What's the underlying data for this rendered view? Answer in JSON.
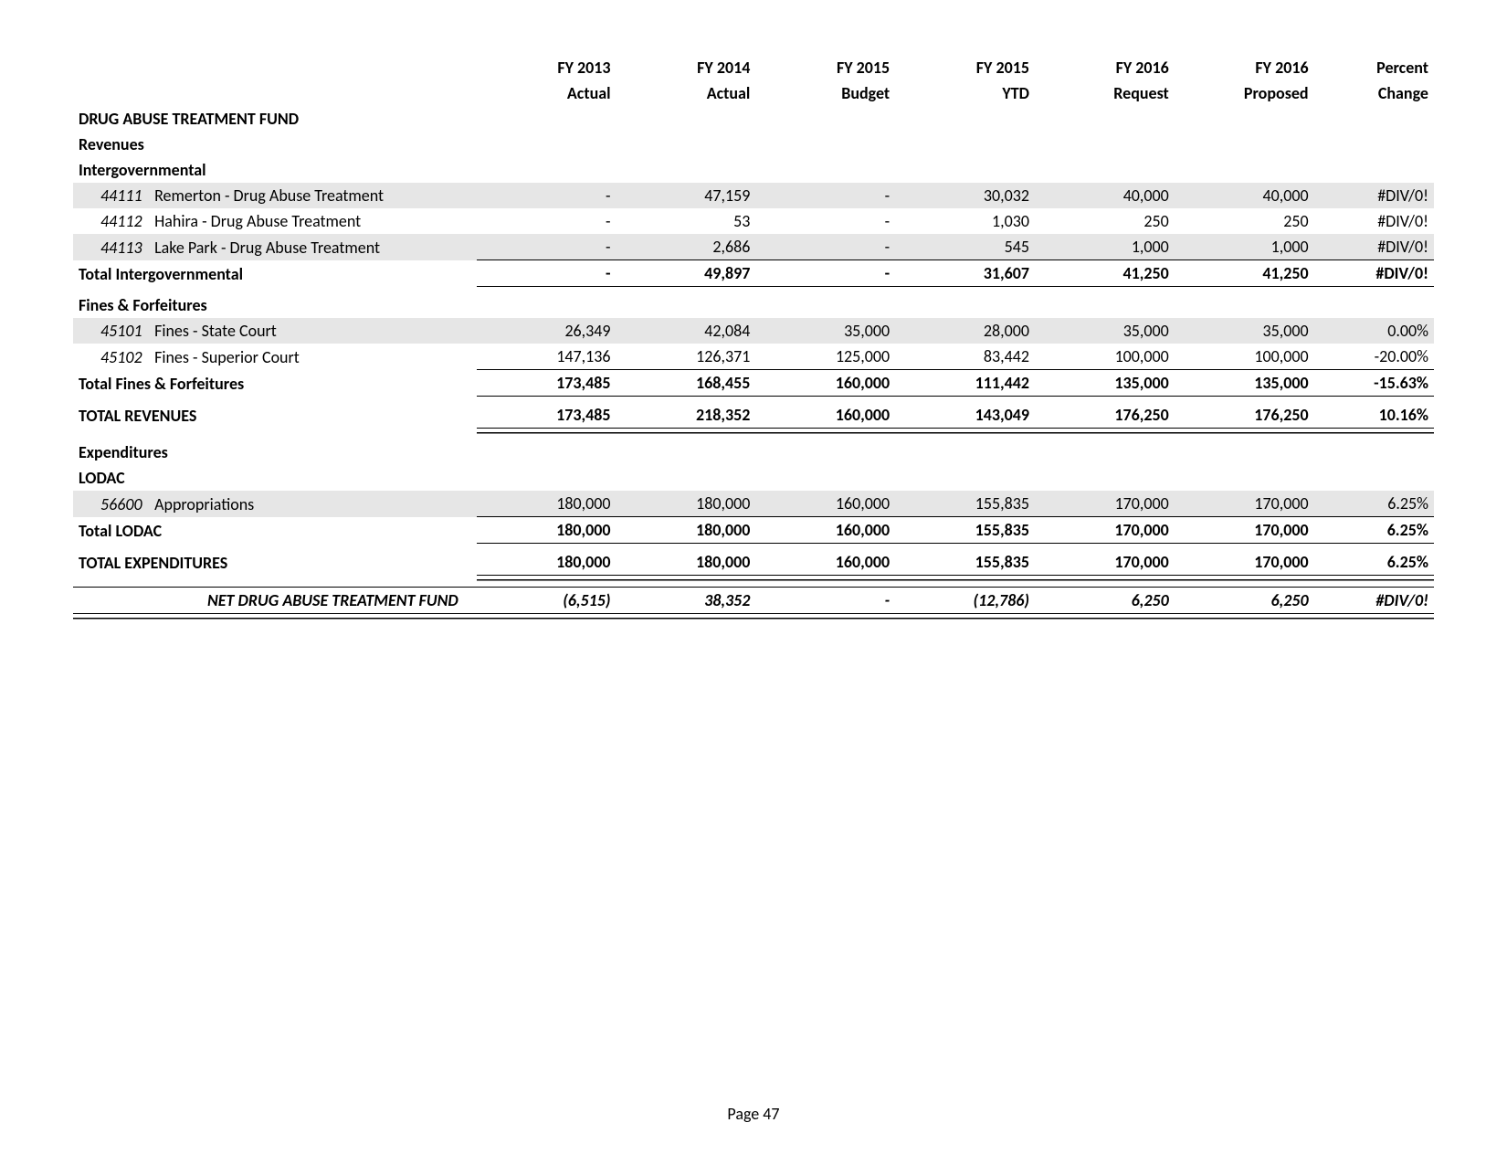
{
  "page_footer": "Page 47",
  "colors": {
    "background": "#ffffff",
    "text": "#000000",
    "shade": "#e6e6e6",
    "rule": "#000000"
  },
  "typography": {
    "font_family": "Calibri, Arial, sans-serif",
    "base_fontsize": 18
  },
  "columns": [
    {
      "line1": "FY 2013",
      "line2": "Actual"
    },
    {
      "line1": "FY 2014",
      "line2": "Actual"
    },
    {
      "line1": "FY 2015",
      "line2": "Budget"
    },
    {
      "line1": "FY 2015",
      "line2": "YTD"
    },
    {
      "line1": "FY 2016",
      "line2": "Request"
    },
    {
      "line1": "FY 2016",
      "line2": "Proposed"
    },
    {
      "line1": "Percent",
      "line2": "Change"
    }
  ],
  "title": "DRUG ABUSE TREATMENT FUND",
  "sections": {
    "revenues_label": "Revenues",
    "intergov_label": "Intergovernmental",
    "intergov_rows": [
      {
        "code": "44111",
        "name": "Remerton - Drug Abuse Treatment",
        "v": [
          "-",
          "47,159",
          "-",
          "30,032",
          "40,000",
          "40,000",
          "#DIV/0!"
        ],
        "shade": true
      },
      {
        "code": "44112",
        "name": "Hahira - Drug Abuse Treatment",
        "v": [
          "-",
          "53",
          "-",
          "1,030",
          "250",
          "250",
          "#DIV/0!"
        ],
        "shade": false
      },
      {
        "code": "44113",
        "name": "Lake Park - Drug Abuse Treatment",
        "v": [
          "-",
          "2,686",
          "-",
          "545",
          "1,000",
          "1,000",
          "#DIV/0!"
        ],
        "shade": true
      }
    ],
    "intergov_total": {
      "label": "Total Intergovernmental",
      "v": [
        "-",
        "49,897",
        "-",
        "31,607",
        "41,250",
        "41,250",
        "#DIV/0!"
      ]
    },
    "fines_label": "Fines & Forfeitures",
    "fines_rows": [
      {
        "code": "45101",
        "name": "Fines - State Court",
        "v": [
          "26,349",
          "42,084",
          "35,000",
          "28,000",
          "35,000",
          "35,000",
          "0.00%"
        ],
        "shade": true
      },
      {
        "code": "45102",
        "name": "Fines - Superior Court",
        "v": [
          "147,136",
          "126,371",
          "125,000",
          "83,442",
          "100,000",
          "100,000",
          "-20.00%"
        ],
        "shade": false
      }
    ],
    "fines_total": {
      "label": "Total Fines & Forfeitures",
      "v": [
        "173,485",
        "168,455",
        "160,000",
        "111,442",
        "135,000",
        "135,000",
        "-15.63%"
      ]
    },
    "total_revenues": {
      "label": "TOTAL REVENUES",
      "v": [
        "173,485",
        "218,352",
        "160,000",
        "143,049",
        "176,250",
        "176,250",
        "10.16%"
      ]
    },
    "expenditures_label": "Expenditures",
    "lodac_label": "LODAC",
    "lodac_rows": [
      {
        "code": "56600",
        "name": "Appropriations",
        "v": [
          "180,000",
          "180,000",
          "160,000",
          "155,835",
          "170,000",
          "170,000",
          "6.25%"
        ],
        "shade": true
      }
    ],
    "lodac_total": {
      "label": "Total LODAC",
      "v": [
        "180,000",
        "180,000",
        "160,000",
        "155,835",
        "170,000",
        "170,000",
        "6.25%"
      ]
    },
    "total_expenditures": {
      "label": "TOTAL EXPENDITURES",
      "v": [
        "180,000",
        "180,000",
        "160,000",
        "155,835",
        "170,000",
        "170,000",
        "6.25%"
      ]
    },
    "net": {
      "label": "NET DRUG ABUSE TREATMENT FUND",
      "v": [
        "(6,515)",
        "38,352",
        "-",
        "(12,786)",
        "6,250",
        "6,250",
        "#DIV/0!"
      ]
    }
  }
}
